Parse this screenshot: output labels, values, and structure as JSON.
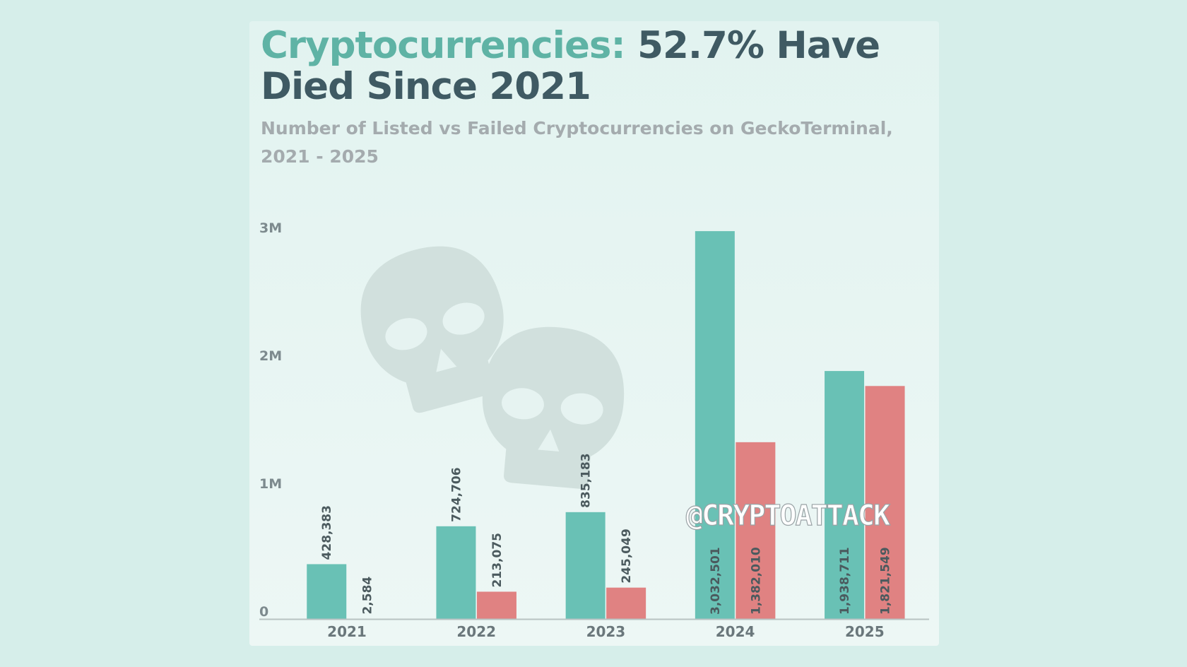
{
  "title": {
    "accent": "Cryptocurrencies:",
    "rest": " 52.7% Have Died Since 2021"
  },
  "subtitle": "Number of Listed vs Failed Cryptocurrencies on GeckoTerminal, 2021 - 2025",
  "watermark": "@CRYPTOATTACK",
  "colors": {
    "listed": "#69c1b5",
    "failed": "#e08282",
    "title_accent": "#5fb3a5",
    "title_main": "#3f5a63",
    "skull": "#d1e0dd"
  },
  "decor": {
    "skull_icon": "skull-icon"
  },
  "chart_data": {
    "type": "bar",
    "categories": [
      "2021",
      "2022",
      "2023",
      "2024",
      "2025"
    ],
    "series": [
      {
        "values": [
          428383,
          724706,
          835183,
          3032501,
          1938711
        ],
        "labels": [
          "428,383",
          "724,706",
          "835,183",
          "3,032,501",
          "1,938,711"
        ],
        "color": "#69c1b5"
      },
      {
        "values": [
          2584,
          213075,
          245049,
          1382010,
          1821549
        ],
        "labels": [
          "2,584",
          "213,075",
          "245,049",
          "1,382,010",
          "1,821,549"
        ],
        "color": "#e08282"
      }
    ],
    "yticks": [
      {
        "value": 0,
        "label": "0"
      },
      {
        "value": 1000000,
        "label": "1M"
      },
      {
        "value": 2000000,
        "label": "2M"
      },
      {
        "value": 3000000,
        "label": "3M"
      }
    ],
    "ylim": [
      0,
      3000000
    ],
    "grid": false,
    "legend": "none"
  }
}
